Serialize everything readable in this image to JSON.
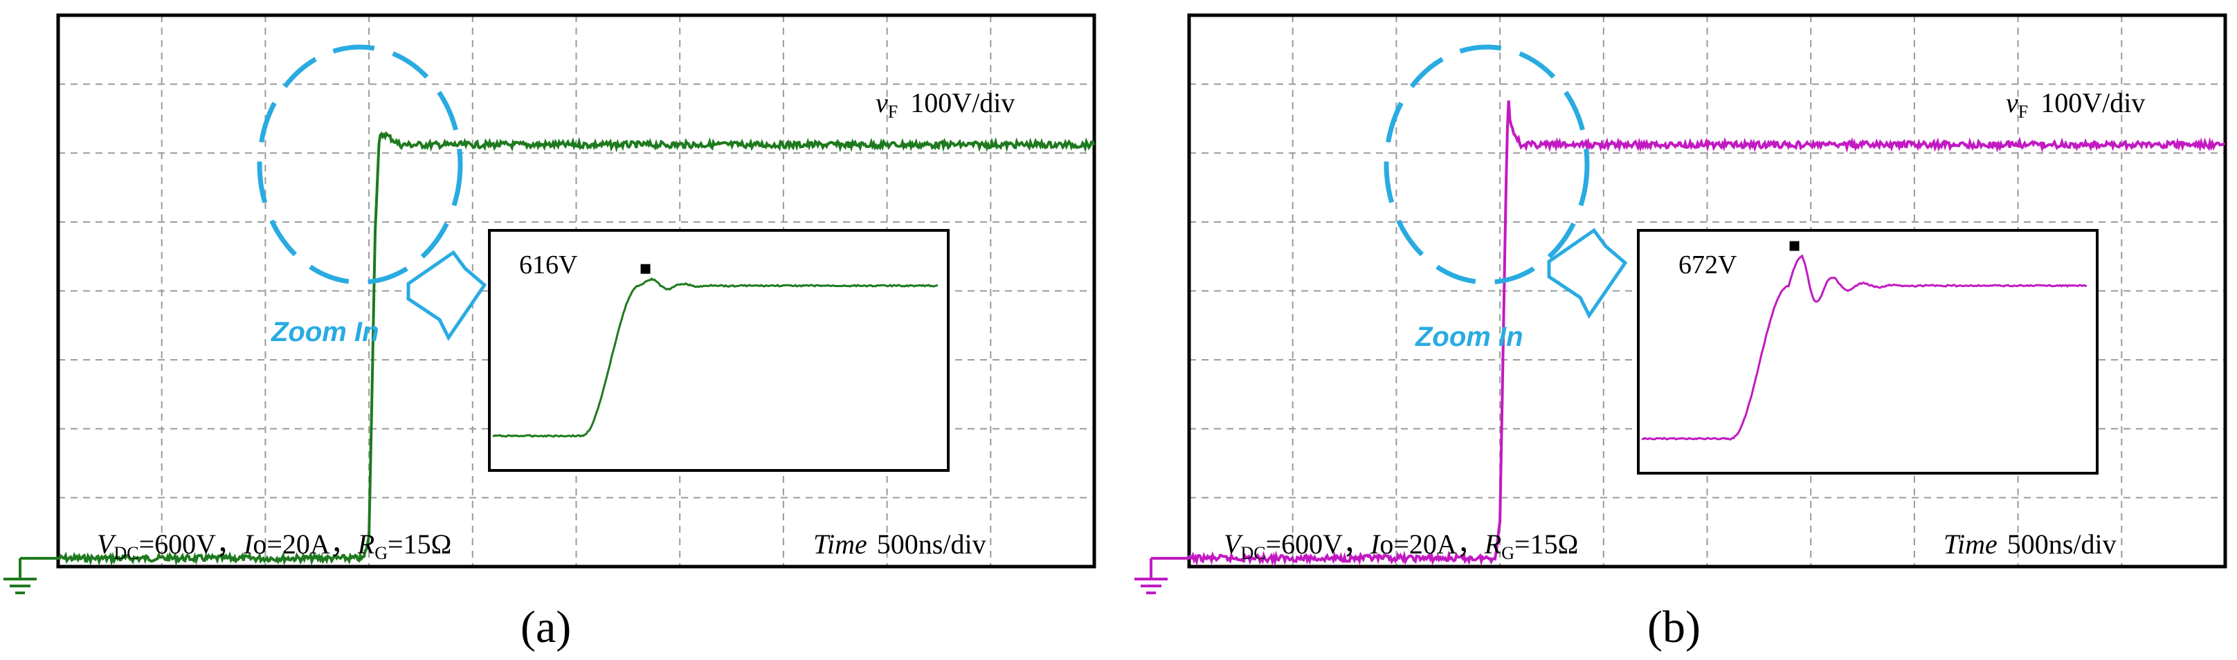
{
  "colors": {
    "a": "#1e7a1e",
    "b": "#c21ac2",
    "accent": "#29abe2",
    "grid": "#9a9a9a"
  },
  "chart_data": [
    {
      "id": "a",
      "panel_label": "(a)",
      "type": "line",
      "title": "",
      "xlabel_italic": "Time",
      "xlabel_scale": "500ns/div",
      "ylabel_main": "v",
      "ylabel_sub": "F",
      "ylabel_scale": "100V/div",
      "cond": {
        "vdc_main": "V",
        "vdc_sub": "DC",
        "vdc_val": "=600V，",
        "io_main": "I",
        "io_val": "o=20A，",
        "rg_main": "R",
        "rg_sub": "G",
        "rg_val": "=15Ω"
      },
      "zoom_text": "Zoom In",
      "peak_label": "616V",
      "divisions": {
        "x": 10,
        "y": 8
      },
      "ground_level_div": 0,
      "steady_level_div": 6,
      "peak_level_div": 6.16,
      "rise_start_div": 3.0,
      "rise_end_div": 3.1,
      "series": [
        {
          "name": "vF",
          "color": "#1e7a1e",
          "x": [
            0,
            2.95,
            3.0,
            3.03,
            3.06,
            3.1,
            3.15,
            3.3,
            10
          ],
          "y": [
            0,
            0,
            0.3,
            2.5,
            4.8,
            6.1,
            6.16,
            6.0,
            6.0
          ]
        }
      ]
    },
    {
      "id": "b",
      "panel_label": "(b)",
      "type": "line",
      "title": "",
      "xlabel_italic": "Time",
      "xlabel_scale": "500ns/div",
      "ylabel_main": "v",
      "ylabel_sub": "F",
      "ylabel_scale": "100V/div",
      "cond": {
        "vdc_main": "V",
        "vdc_sub": "DC",
        "vdc_val": "=600V，",
        "io_main": "I",
        "io_val": "o=20A，",
        "rg_main": "R",
        "rg_sub": "G",
        "rg_val": "=15Ω"
      },
      "zoom_text": "Zoom In",
      "peak_label": "672V",
      "divisions": {
        "x": 10,
        "y": 8
      },
      "ground_level_div": 0,
      "steady_level_div": 6,
      "peak_level_div": 6.72,
      "rise_start_div": 3.0,
      "rise_end_div": 3.08,
      "series": [
        {
          "name": "vF",
          "color": "#c21ac2",
          "x": [
            0,
            2.95,
            3.0,
            3.03,
            3.06,
            3.08,
            3.1,
            3.2,
            10
          ],
          "y": [
            0,
            0,
            0.5,
            3.0,
            5.5,
            6.72,
            6.3,
            6.0,
            6.0
          ]
        }
      ]
    }
  ]
}
